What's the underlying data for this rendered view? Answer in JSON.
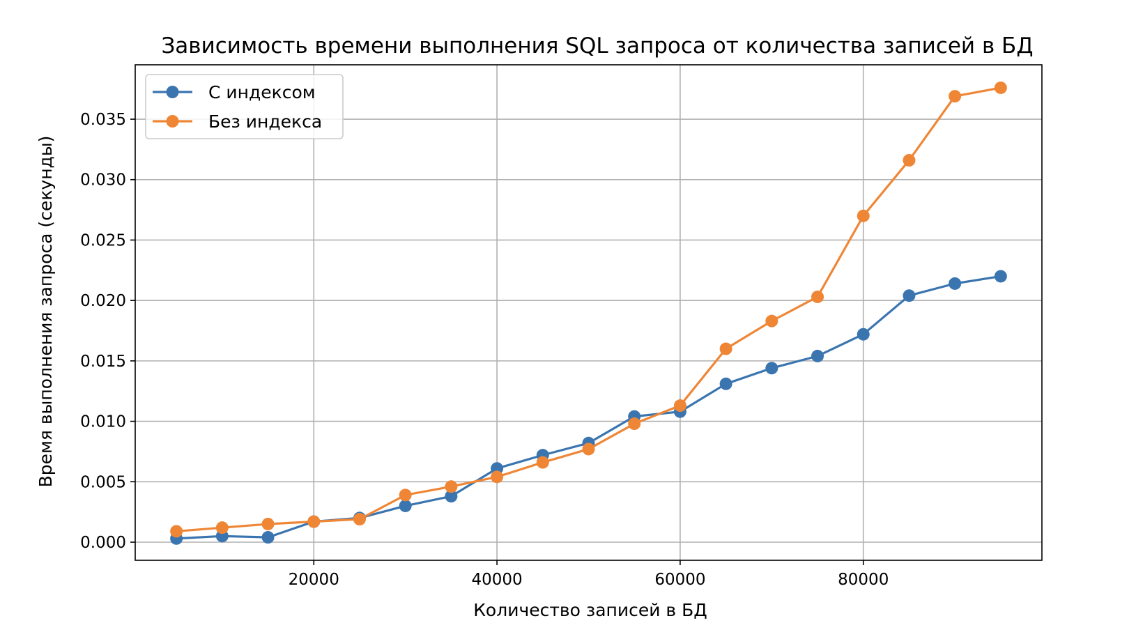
{
  "chart_data": {
    "type": "line",
    "title": "Зависимость времени выполнения SQL запроса от количества записей в БД",
    "xlabel": "Количество записей в БД",
    "ylabel": "Время выполнения запроса (секунды)",
    "xlim": [
      500,
      99500
    ],
    "ylim": [
      -0.0015,
      0.0395
    ],
    "xticks": [
      20000,
      40000,
      60000,
      80000
    ],
    "xtick_labels": [
      "20000",
      "40000",
      "60000",
      "80000"
    ],
    "yticks": [
      0.0,
      0.005,
      0.01,
      0.015,
      0.02,
      0.025,
      0.03,
      0.035
    ],
    "ytick_labels": [
      "0.000",
      "0.005",
      "0.010",
      "0.015",
      "0.020",
      "0.025",
      "0.030",
      "0.035"
    ],
    "grid": true,
    "legend_position": "upper-left",
    "x": [
      5000,
      10000,
      15000,
      20000,
      25000,
      30000,
      35000,
      40000,
      45000,
      50000,
      55000,
      60000,
      65000,
      70000,
      75000,
      80000,
      85000,
      90000,
      95000
    ],
    "series": [
      {
        "name": "С индексом",
        "color": "#3a75b0",
        "values": [
          0.0003,
          0.0005,
          0.0004,
          0.0017,
          0.002,
          0.003,
          0.0038,
          0.0061,
          0.0072,
          0.0082,
          0.0104,
          0.0108,
          0.0131,
          0.0144,
          0.0154,
          0.0172,
          0.0204,
          0.0214,
          0.022
        ]
      },
      {
        "name": "Без индекса",
        "color": "#ef8636",
        "values": [
          0.0009,
          0.0012,
          0.0015,
          0.0017,
          0.0019,
          0.0039,
          0.0046,
          0.0054,
          0.0066,
          0.0077,
          0.0098,
          0.0113,
          0.016,
          0.0183,
          0.0203,
          0.027,
          0.0316,
          0.0369,
          0.0376
        ]
      }
    ]
  }
}
